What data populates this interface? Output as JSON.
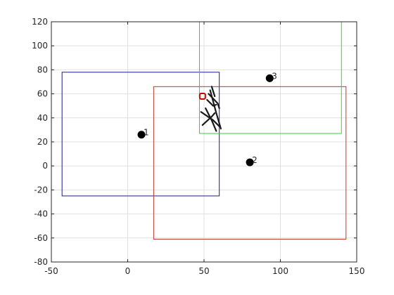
{
  "chart_data": {
    "type": "scatter",
    "title": "",
    "xlabel": "",
    "ylabel": "",
    "xlim": [
      -50,
      150
    ],
    "ylim": [
      -80,
      120
    ],
    "grid": true,
    "legend": "none",
    "xticks": [
      -50,
      0,
      50,
      100,
      150
    ],
    "yticks": [
      -80,
      -60,
      -40,
      -20,
      0,
      20,
      40,
      60,
      80,
      100,
      120
    ],
    "points": [
      {
        "label": "1",
        "x": 9,
        "y": 26
      },
      {
        "label": "2",
        "x": 80,
        "y": 3
      },
      {
        "label": "3",
        "x": 93,
        "y": 73
      }
    ],
    "rectangles": [
      {
        "color": "#1a1a8c",
        "x": [
          -43,
          60
        ],
        "y": [
          -25,
          78
        ]
      },
      {
        "color": "#c0392b",
        "x": [
          17,
          143
        ],
        "y": [
          -61,
          66
        ]
      },
      {
        "color": "#3dcc3d",
        "x": [
          47,
          140
        ],
        "y": [
          27,
          120
        ]
      }
    ],
    "marker": {
      "x": 49,
      "y": 58,
      "color": "#cc0000"
    },
    "sketch_lines": [
      [
        [
          54,
          63
        ],
        [
          58,
          44
        ],
        [
          61,
          31
        ]
      ],
      [
        [
          51,
          48
        ],
        [
          55,
          38
        ],
        [
          58,
          29
        ]
      ],
      [
        [
          48,
          45
        ],
        [
          56,
          38
        ],
        [
          60,
          33
        ]
      ],
      [
        [
          53,
          60
        ],
        [
          59,
          52
        ],
        [
          60,
          48
        ]
      ],
      [
        [
          49,
          34
        ],
        [
          55,
          41
        ],
        [
          57,
          44
        ]
      ],
      [
        [
          52,
          55
        ],
        [
          56,
          50
        ],
        [
          58,
          51
        ]
      ],
      [
        [
          55,
          66
        ],
        [
          57,
          58
        ]
      ]
    ]
  }
}
